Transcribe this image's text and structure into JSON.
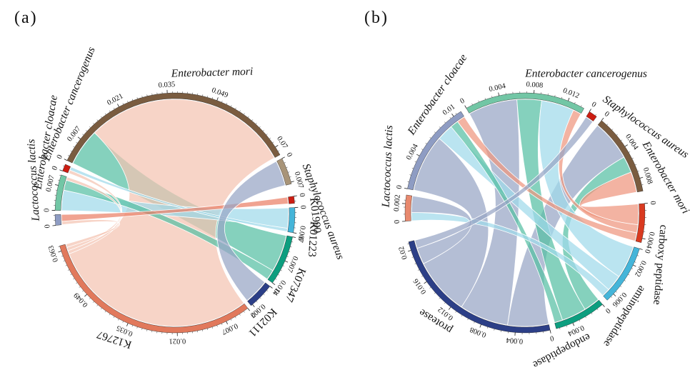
{
  "figure": {
    "background": "#ffffff",
    "panel_tags": [
      "(a)",
      "(b)"
    ]
  },
  "chart_data": [
    {
      "type": "chord",
      "tag": "(a)",
      "description": "Chord diagram linking bacterial species (top arcs) to KEGG ortholog IDs (bottom arcs); arc axes in relative abundance units",
      "sectors": [
        {
          "id": "lactis_a",
          "label": "Lactococcus lactis",
          "italic": true,
          "color": "#8e9cc3",
          "ribbon_color": "#97a5c5",
          "value": 0.003,
          "ticks": [
            {
              "pos": 0,
              "t": "0"
            }
          ]
        },
        {
          "id": "cloacae_a",
          "label": "Enterobacter cloacae",
          "italic": true,
          "color": "#72c6a5",
          "ribbon_color": "#6cc7ad",
          "value": 0.01,
          "ticks": [
            {
              "pos": 0,
              "t": "0"
            },
            {
              "pos": 0.007,
              "t": "0.007"
            }
          ]
        },
        {
          "id": "cancero_a",
          "label": "Enterobacter cancerogenus",
          "italic": true,
          "color": "#cc1d12",
          "ribbon_color": "#ea7f66",
          "value": 0.002,
          "ticks": [
            {
              "pos": 0,
              "t": "0"
            }
          ]
        },
        {
          "id": "mori_a",
          "label": "Enterobacter mori",
          "italic": true,
          "color": "#7a5c40",
          "ribbon_color": "#b09a7e",
          "value": 0.0725,
          "ticks": [
            {
              "pos": 0,
              "t": "0"
            },
            {
              "pos": 0.007,
              "t": "0.007"
            },
            {
              "pos": 0.021,
              "t": "0.021"
            },
            {
              "pos": 0.035,
              "t": "0.035"
            },
            {
              "pos": 0.049,
              "t": "0.049"
            },
            {
              "pos": 0.07,
              "t": "0.07"
            }
          ]
        },
        {
          "id": "aureus_a",
          "label": "Staphylococcus aureus",
          "italic": true,
          "color": "#a89478",
          "ribbon_color": "#c4b49c",
          "value": 0.0075,
          "ticks": [
            {
              "pos": 0,
              "t": "0"
            },
            {
              "pos": 0.007,
              "t": "0.007"
            }
          ]
        },
        {
          "id": "K01990",
          "label": "K01990",
          "italic": false,
          "color": "#cc1d12",
          "ribbon_color": "#ea7f66",
          "value": 0.002,
          "ticks": [
            {
              "pos": 0,
              "t": "0"
            }
          ]
        },
        {
          "id": "K01223",
          "label": "K01223",
          "italic": false,
          "color": "#45b5d9",
          "ribbon_color": "#9fd9ea",
          "value": 0.007,
          "ticks": [
            {
              "pos": 0,
              "t": "0"
            },
            {
              "pos": 0.007,
              "t": "0.007"
            }
          ]
        },
        {
          "id": "K07347",
          "label": "K07347",
          "italic": false,
          "color": "#0d9e7f",
          "ribbon_color": "#56bfa4",
          "value": 0.014,
          "ticks": [
            {
              "pos": 0,
              "t": "0"
            },
            {
              "pos": 0.007,
              "t": "0.007"
            },
            {
              "pos": 0.014,
              "t": "0.014"
            }
          ]
        },
        {
          "id": "K02111",
          "label": "K02111",
          "italic": false,
          "color": "#2c3f87",
          "ribbon_color": "#97a5c5",
          "value": 0.0075,
          "ticks": [
            {
              "pos": 0,
              "t": "0"
            },
            {
              "pos": 0.007,
              "t": "0.007"
            }
          ]
        },
        {
          "id": "K12767",
          "label": "K12767",
          "italic": false,
          "color": "#e1795c",
          "ribbon_color": "#f4c3b2",
          "value": 0.0645,
          "ticks": [
            {
              "pos": 0,
              "t": "0"
            },
            {
              "pos": 0.007,
              "t": "0.007"
            },
            {
              "pos": 0.021,
              "t": "0.021"
            },
            {
              "pos": 0.035,
              "t": "0.035"
            },
            {
              "pos": 0.049,
              "t": "0.049"
            },
            {
              "pos": 0.063,
              "t": "0.063"
            }
          ]
        }
      ],
      "flows": [
        {
          "source": "mori_a",
          "target": "K07347",
          "value": 0.011
        },
        {
          "source": "mori_a",
          "target": "K12767",
          "value": 0.0615
        },
        {
          "source": "cloacae_a",
          "target": "K01223",
          "value": 0.006
        },
        {
          "source": "cloacae_a",
          "target": "K07347",
          "value": 0.003
        },
        {
          "source": "cloacae_a",
          "target": "K12767",
          "value": 0.001
        },
        {
          "source": "cancero_a",
          "target": "K12767",
          "value": 0.001
        },
        {
          "source": "cancero_a",
          "target": "K01223",
          "value": 0.001
        },
        {
          "source": "lactis_a",
          "target": "K12767",
          "value": 0.001
        },
        {
          "source": "lactis_a",
          "target": "K01990",
          "value": 0.002
        },
        {
          "source": "aureus_a",
          "target": "K02111",
          "value": 0.0075
        }
      ]
    },
    {
      "type": "chord",
      "tag": "(b)",
      "description": "Chord diagram linking bacterial species (top arcs) to peptidase/protease functions (bottom arcs); arc axes in relative abundance units",
      "sectors": [
        {
          "id": "lactis_b",
          "label": "Lactococcus lactis",
          "italic": true,
          "color": "#e8896e",
          "ribbon_color": "#f4c3b2",
          "value": 0.003,
          "ticks": [
            {
              "pos": 0,
              "t": "0"
            },
            {
              "pos": 0.002,
              "t": "0.002"
            }
          ]
        },
        {
          "id": "cloacae_b",
          "label": "Enterobacter cloacae",
          "italic": true,
          "color": "#8e9cc3",
          "ribbon_color": "#97a5c5",
          "value": 0.011,
          "ticks": [
            {
              "pos": 0,
              "t": "0"
            },
            {
              "pos": 0.004,
              "t": "0.004"
            },
            {
              "pos": 0.01,
              "t": "0.01"
            }
          ]
        },
        {
          "id": "cancero_b",
          "label": "Enterobacter cancerogenus",
          "italic": true,
          "color": "#72c6a5",
          "ribbon_color": "#6cc7ad",
          "value": 0.014,
          "ticks": [
            {
              "pos": 0,
              "t": "0"
            },
            {
              "pos": 0.004,
              "t": "0.004"
            },
            {
              "pos": 0.008,
              "t": "0.008"
            },
            {
              "pos": 0.012,
              "t": "0.012"
            }
          ]
        },
        {
          "id": "aureus_b",
          "label": "Staphylococcus aureus",
          "italic": true,
          "color": "#cc1d12",
          "ribbon_color": "#ea7f66",
          "value": 0.001,
          "ticks": [
            {
              "pos": 0,
              "t": "0"
            }
          ]
        },
        {
          "id": "mori_b",
          "label": "Enterobacter mori",
          "italic": true,
          "color": "#7a5c40",
          "ribbon_color": "#b09a7e",
          "value": 0.0095,
          "ticks": [
            {
              "pos": 0,
              "t": "0"
            },
            {
              "pos": 0.004,
              "t": "0.004"
            },
            {
              "pos": 0.008,
              "t": "0.008"
            }
          ]
        },
        {
          "id": "carboxy",
          "label": "carboxy peptidase",
          "italic": false,
          "color": "#d93a20",
          "ribbon_color": "#ee957e",
          "value": 0.0045,
          "ticks": [
            {
              "pos": 0,
              "t": "0"
            },
            {
              "pos": 0.004,
              "t": "0.004"
            }
          ]
        },
        {
          "id": "amino",
          "label": "aminopeptidase",
          "italic": false,
          "color": "#45b5d9",
          "ribbon_color": "#9fd9ea",
          "value": 0.007,
          "ticks": [
            {
              "pos": 0,
              "t": "0"
            },
            {
              "pos": 0.002,
              "t": "0.002"
            },
            {
              "pos": 0.006,
              "t": "0.006"
            }
          ]
        },
        {
          "id": "endo",
          "label": "endopeptidase",
          "italic": false,
          "color": "#0d9e7f",
          "ribbon_color": "#56bfa4",
          "value": 0.006,
          "ticks": [
            {
              "pos": 0,
              "t": "0"
            },
            {
              "pos": 0.004,
              "t": "0.004"
            }
          ]
        },
        {
          "id": "protease",
          "label": "protease",
          "italic": false,
          "color": "#2c3f87",
          "ribbon_color": "#97a5c5",
          "value": 0.021,
          "ticks": [
            {
              "pos": 0,
              "t": "0"
            },
            {
              "pos": 0.004,
              "t": "0.004"
            },
            {
              "pos": 0.008,
              "t": "0.008"
            },
            {
              "pos": 0.012,
              "t": "0.012"
            },
            {
              "pos": 0.016,
              "t": "0.016"
            },
            {
              "pos": 0.02,
              "t": "0.02"
            }
          ]
        }
      ],
      "flows": [
        {
          "source": "mori_b",
          "target": "protease",
          "value": 0.005
        },
        {
          "source": "mori_b",
          "target": "endo",
          "value": 0.002
        },
        {
          "source": "mori_b",
          "target": "carboxy",
          "value": 0.0025
        },
        {
          "source": "cancero_b",
          "target": "protease",
          "value": 0.006
        },
        {
          "source": "cancero_b",
          "target": "endo",
          "value": 0.003
        },
        {
          "source": "cancero_b",
          "target": "amino",
          "value": 0.004
        },
        {
          "source": "cancero_b",
          "target": "carboxy",
          "value": 0.001
        },
        {
          "source": "cloacae_b",
          "target": "protease",
          "value": 0.007
        },
        {
          "source": "cloacae_b",
          "target": "amino",
          "value": 0.002
        },
        {
          "source": "cloacae_b",
          "target": "endo",
          "value": 0.001
        },
        {
          "source": "cloacae_b",
          "target": "carboxy",
          "value": 0.001
        },
        {
          "source": "lactis_b",
          "target": "amino",
          "value": 0.001
        },
        {
          "source": "lactis_b",
          "target": "protease",
          "value": 0.002
        },
        {
          "source": "aureus_b",
          "target": "protease",
          "value": 0.001
        }
      ]
    }
  ]
}
